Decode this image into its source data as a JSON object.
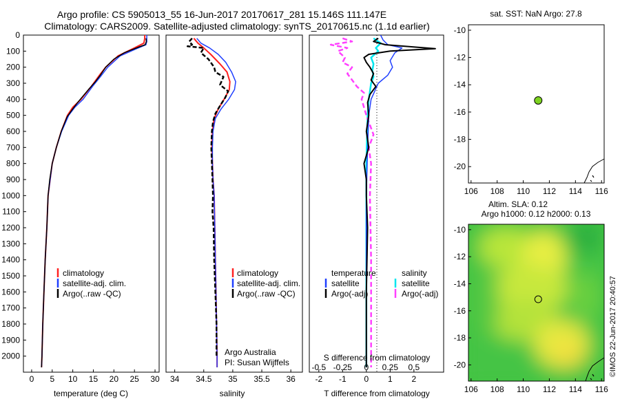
{
  "header": {
    "title_line1": "Argo profile: CS 5905013_55 16-Jun-2017 20170617_281 15.146S 111.147E",
    "title_line2": "Climatology: CARS2009. Satellite-adjusted climatology: synTS_20170615.nc (1.1d earlier)"
  },
  "watermark": "©IMOS 22-Jun-2017 20:40:57",
  "colors": {
    "climatology": "#ff2020",
    "satellite": "#1f3fff",
    "argo": "#000000",
    "salinity_satellite": "#00e5ee",
    "salinity_argo": "#ff40ff",
    "marker": "#7ed321",
    "land": "#000000"
  },
  "chart_data": [
    {
      "id": "temperature",
      "type": "line",
      "xlabel": "temperature (deg C)",
      "ylabel": "",
      "xlim": [
        -2,
        31
      ],
      "ylim": [
        2100,
        0
      ],
      "xticks": [
        0,
        5,
        10,
        15,
        20,
        25,
        30
      ],
      "yticks": [
        0,
        100,
        200,
        300,
        400,
        500,
        600,
        700,
        800,
        900,
        1000,
        1100,
        1200,
        1300,
        1400,
        1500,
        1600,
        1700,
        1800,
        1900,
        2000
      ],
      "legend": [
        "climatology",
        "satellite-adj. clim.",
        "Argo(..raw -QC)"
      ],
      "series": [
        {
          "name": "climatology",
          "points": [
            [
              27.5,
              0
            ],
            [
              27.5,
              20
            ],
            [
              27.3,
              50
            ],
            [
              25,
              80
            ],
            [
              21,
              130
            ],
            [
              18,
              200
            ],
            [
              16.5,
              250
            ],
            [
              14.5,
              320
            ],
            [
              12,
              400
            ],
            [
              10,
              450
            ],
            [
              8.7,
              500
            ],
            [
              7.2,
              600
            ],
            [
              6,
              700
            ],
            [
              5,
              800
            ],
            [
              4.5,
              900
            ],
            [
              4,
              1000
            ],
            [
              3.7,
              1200
            ],
            [
              3.3,
              1400
            ],
            [
              3,
              1600
            ],
            [
              2.7,
              1800
            ],
            [
              2.5,
              2000
            ],
            [
              2.4,
              2070
            ]
          ]
        },
        {
          "name": "satellite-adj. clim.",
          "points": [
            [
              28,
              0
            ],
            [
              28,
              40
            ],
            [
              27.8,
              60
            ],
            [
              25.5,
              85
            ],
            [
              21.5,
              130
            ],
            [
              18.5,
              200
            ],
            [
              16.7,
              260
            ],
            [
              14.8,
              320
            ],
            [
              12.5,
              400
            ],
            [
              10.5,
              450
            ],
            [
              9,
              500
            ],
            [
              7.3,
              600
            ],
            [
              6,
              700
            ],
            [
              5,
              800
            ],
            [
              4.5,
              900
            ],
            [
              4,
              1000
            ],
            [
              3.7,
              1200
            ],
            [
              3.3,
              1400
            ],
            [
              3,
              1600
            ],
            [
              2.7,
              1800
            ],
            [
              2.5,
              2000
            ],
            [
              2.4,
              2070
            ]
          ]
        },
        {
          "name": "Argo(..raw -QC)",
          "points": [
            [
              27.8,
              20
            ],
            [
              27.9,
              40
            ],
            [
              27.6,
              60
            ],
            [
              26,
              75
            ],
            [
              22.5,
              110
            ],
            [
              20,
              150
            ],
            [
              18,
              200
            ],
            [
              16.7,
              250
            ],
            [
              15.5,
              290
            ],
            [
              13.8,
              340
            ],
            [
              11.5,
              410
            ],
            [
              10,
              460
            ],
            [
              8.6,
              510
            ],
            [
              7.2,
              600
            ],
            [
              6,
              700
            ],
            [
              5,
              800
            ],
            [
              4.4,
              900
            ],
            [
              4,
              1000
            ],
            [
              3.7,
              1200
            ],
            [
              3.3,
              1400
            ],
            [
              3,
              1600
            ],
            [
              2.7,
              1800
            ],
            [
              2.5,
              2000
            ],
            [
              2.4,
              2070
            ]
          ]
        }
      ]
    },
    {
      "id": "salinity",
      "type": "line",
      "xlabel": "salinity",
      "xlim": [
        33.85,
        36.2
      ],
      "ylim": [
        2100,
        0
      ],
      "xticks": [
        34,
        34.5,
        35,
        35.5,
        36
      ],
      "xticklabels": [
        "34",
        "34.5",
        "35",
        "35.5",
        "36"
      ],
      "legend": [
        "climatology",
        "satellite-adj. clim.",
        "Argo(..raw -QC)"
      ],
      "annotation": [
        "Argo Australia",
        "PI: Susan Wijffels"
      ],
      "series": [
        {
          "name": "climatology",
          "points": [
            [
              34.33,
              20
            ],
            [
              34.4,
              50
            ],
            [
              34.5,
              80
            ],
            [
              34.62,
              120
            ],
            [
              34.78,
              180
            ],
            [
              34.9,
              230
            ],
            [
              34.95,
              290
            ],
            [
              34.94,
              340
            ],
            [
              34.85,
              400
            ],
            [
              34.75,
              460
            ],
            [
              34.68,
              520
            ],
            [
              34.65,
              600
            ],
            [
              34.64,
              700
            ],
            [
              34.65,
              800
            ],
            [
              34.66,
              900
            ],
            [
              34.68,
              1000
            ],
            [
              34.69,
              1200
            ],
            [
              34.7,
              1400
            ],
            [
              34.71,
              1600
            ],
            [
              34.72,
              1800
            ],
            [
              34.73,
              2000
            ],
            [
              34.73,
              2070
            ]
          ]
        },
        {
          "name": "satellite-adj. clim.",
          "points": [
            [
              34.38,
              20
            ],
            [
              34.45,
              50
            ],
            [
              34.6,
              80
            ],
            [
              34.75,
              120
            ],
            [
              34.88,
              170
            ],
            [
              34.98,
              230
            ],
            [
              35.05,
              290
            ],
            [
              35.03,
              340
            ],
            [
              34.93,
              400
            ],
            [
              34.8,
              460
            ],
            [
              34.7,
              520
            ],
            [
              34.66,
              600
            ],
            [
              34.65,
              700
            ],
            [
              34.65,
              800
            ],
            [
              34.66,
              900
            ],
            [
              34.68,
              1000
            ],
            [
              34.69,
              1200
            ],
            [
              34.7,
              1400
            ],
            [
              34.71,
              1600
            ],
            [
              34.72,
              1800
            ],
            [
              34.73,
              2000
            ],
            [
              34.73,
              2070
            ]
          ]
        },
        {
          "name": "Argo(..raw -QC)",
          "points": [
            [
              34.3,
              20
            ],
            [
              34.25,
              40
            ],
            [
              34.3,
              60
            ],
            [
              34.22,
              70
            ],
            [
              34.5,
              80
            ],
            [
              34.45,
              110
            ],
            [
              34.58,
              150
            ],
            [
              34.68,
              200
            ],
            [
              34.7,
              230
            ],
            [
              34.84,
              260
            ],
            [
              34.78,
              310
            ],
            [
              34.92,
              350
            ],
            [
              34.87,
              390
            ],
            [
              34.78,
              440
            ],
            [
              34.7,
              490
            ],
            [
              34.66,
              540
            ],
            [
              34.64,
              600
            ],
            [
              34.63,
              700
            ],
            [
              34.64,
              800
            ],
            [
              34.65,
              900
            ],
            [
              34.66,
              1000
            ],
            [
              34.65,
              1100
            ],
            [
              34.67,
              1200
            ],
            [
              34.68,
              1400
            ],
            [
              34.7,
              1600
            ],
            [
              34.72,
              1800
            ],
            [
              34.72,
              2000
            ]
          ]
        }
      ]
    },
    {
      "id": "difference",
      "type": "line",
      "xlabel": "T difference from climatology",
      "x2label": "S difference from climatology",
      "xlim": [
        -2.4,
        3.25
      ],
      "ylim": [
        2100,
        0
      ],
      "xticks": [
        -2,
        -1,
        0,
        1,
        2
      ],
      "x2ticks": [
        -0.5,
        -0.25,
        0,
        0.25,
        0.5
      ],
      "x2ticklabels": [
        "-0.5",
        "-0.25",
        "0",
        "0.25",
        "0.5"
      ],
      "legend_temperature": {
        "heading": "temperature",
        "items": [
          "satellite",
          "Argo(-adj)"
        ]
      },
      "legend_salinity": {
        "heading": "salinity",
        "items": [
          "satellite",
          "Argo(-adj)"
        ]
      },
      "series": [
        {
          "name": "temperature satellite",
          "points": [
            [
              0.6,
              0
            ],
            [
              0.7,
              30
            ],
            [
              0.9,
              60
            ],
            [
              1.5,
              80
            ],
            [
              1.2,
              110
            ],
            [
              1.0,
              160
            ],
            [
              1.1,
              200
            ],
            [
              0.9,
              250
            ],
            [
              0.5,
              300
            ],
            [
              0.2,
              400
            ],
            [
              0.1,
              500
            ],
            [
              0.05,
              700
            ],
            [
              0,
              1000
            ],
            [
              0,
              1500
            ],
            [
              0,
              2000
            ],
            [
              0,
              2070
            ]
          ]
        },
        {
          "name": "temperature Argo(-adj)",
          "points": [
            [
              0.5,
              20
            ],
            [
              0.3,
              40
            ],
            [
              0.8,
              60
            ],
            [
              2.9,
              85
            ],
            [
              1.0,
              100
            ],
            [
              0.1,
              120
            ],
            [
              -0.1,
              140
            ],
            [
              0,
              170
            ],
            [
              0.15,
              200
            ],
            [
              0.3,
              240
            ],
            [
              0.2,
              280
            ],
            [
              0.4,
              320
            ],
            [
              0.15,
              370
            ],
            [
              0.05,
              420
            ],
            [
              0.1,
              500
            ],
            [
              0,
              600
            ],
            [
              0.1,
              700
            ],
            [
              -0.1,
              800
            ],
            [
              0,
              900
            ],
            [
              0,
              1000
            ],
            [
              0.05,
              1200
            ],
            [
              0,
              1600
            ],
            [
              0,
              2000
            ],
            [
              0,
              2070
            ]
          ]
        },
        {
          "name": "salinity satellite",
          "points": [
            [
              0.3,
              20
            ],
            [
              0.6,
              50
            ],
            [
              0.4,
              80
            ],
            [
              0.5,
              100
            ],
            [
              0.2,
              140
            ],
            [
              0.3,
              180
            ],
            [
              0.25,
              220
            ],
            [
              0.3,
              260
            ],
            [
              0.2,
              300
            ],
            [
              0.1,
              400
            ],
            [
              0.05,
              500
            ],
            [
              0,
              800
            ],
            [
              0,
              1200
            ],
            [
              0,
              2000
            ],
            [
              0,
              2070
            ]
          ]
        },
        {
          "name": "salinity Argo(-adj)",
          "points": [
            [
              -1.0,
              20
            ],
            [
              -0.6,
              40
            ],
            [
              -1.5,
              60
            ],
            [
              -0.8,
              80
            ],
            [
              -1.2,
              100
            ],
            [
              -0.9,
              140
            ],
            [
              -1.0,
              170
            ],
            [
              -0.6,
              200
            ],
            [
              -0.8,
              240
            ],
            [
              -0.6,
              280
            ],
            [
              -0.4,
              320
            ],
            [
              -0.1,
              360
            ],
            [
              -0.2,
              400
            ],
            [
              0,
              500
            ],
            [
              0.3,
              620
            ],
            [
              0.1,
              700
            ],
            [
              0.2,
              800
            ],
            [
              0.15,
              1000
            ],
            [
              0.2,
              1400
            ],
            [
              0.2,
              1800
            ],
            [
              0.2,
              2070
            ]
          ]
        }
      ]
    },
    {
      "id": "sst_map",
      "type": "scatter",
      "title": "sat. SST: NaN Argo: 27.8",
      "xlim": [
        105.8,
        116.2
      ],
      "ylim": [
        -21.2,
        -9.6
      ],
      "xticks": [
        106,
        108,
        110,
        112,
        114,
        116
      ],
      "yticks": [
        -10,
        -12,
        -14,
        -16,
        -18,
        -20
      ],
      "points": [
        [
          111.147,
          -15.146
        ]
      ]
    },
    {
      "id": "sla_map",
      "type": "heatmap",
      "title_line1": "Altim. SLA: 0.12",
      "title_line2": "Argo h1000: 0.12 h2000: 0.13",
      "xlim": [
        105.8,
        116.2
      ],
      "ylim": [
        -21.2,
        -9.6
      ],
      "xticks": [
        106,
        108,
        110,
        112,
        114,
        116
      ],
      "yticks": [
        -10,
        -12,
        -14,
        -16,
        -18,
        -20
      ],
      "points": [
        [
          111.147,
          -15.146
        ]
      ]
    }
  ]
}
